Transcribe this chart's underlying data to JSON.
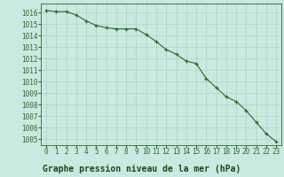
{
  "x": [
    0,
    1,
    2,
    3,
    4,
    5,
    6,
    7,
    8,
    9,
    10,
    11,
    12,
    13,
    14,
    15,
    16,
    17,
    18,
    19,
    20,
    21,
    22,
    23
  ],
  "y": [
    1016.2,
    1016.1,
    1016.1,
    1015.8,
    1015.3,
    1014.9,
    1014.7,
    1014.6,
    1014.6,
    1014.6,
    1014.1,
    1013.5,
    1012.8,
    1012.4,
    1011.8,
    1011.6,
    1010.3,
    1009.5,
    1008.7,
    1008.3,
    1007.5,
    1006.5,
    1005.5,
    1004.8
  ],
  "line_color": "#2d6a2d",
  "marker": "+",
  "bg_color": "#c8eae0",
  "grid_color": "#a8cfc0",
  "title": "Graphe pression niveau de la mer (hPa)",
  "ylim_min": 1004.5,
  "ylim_max": 1016.8,
  "yticks": [
    1005,
    1006,
    1007,
    1008,
    1009,
    1010,
    1011,
    1012,
    1013,
    1014,
    1015,
    1016
  ],
  "xticks": [
    0,
    1,
    2,
    3,
    4,
    5,
    6,
    7,
    8,
    9,
    10,
    11,
    12,
    13,
    14,
    15,
    16,
    17,
    18,
    19,
    20,
    21,
    22,
    23
  ],
  "xtick_labels": [
    "0",
    "1",
    "2",
    "3",
    "4",
    "5",
    "6",
    "7",
    "8",
    "9",
    "10",
    "11",
    "12",
    "13",
    "14",
    "15",
    "16",
    "17",
    "18",
    "19",
    "20",
    "21",
    "22",
    "23"
  ],
  "title_fontsize": 7.0,
  "tick_fontsize": 5.5,
  "linewidth": 0.8,
  "markersize": 3.5,
  "title_color": "#1a4a1a"
}
